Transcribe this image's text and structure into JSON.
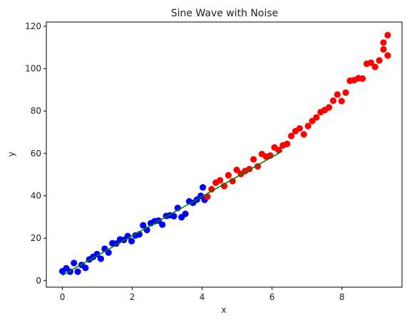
{
  "chart_data": {
    "type": "scatter",
    "title": "Sine Wave with Noise",
    "xlabel": "x",
    "ylabel": "y",
    "xlim": [
      -0.46,
      9.72
    ],
    "ylim": [
      -3.1,
      122.0
    ],
    "xticks": [
      0,
      2,
      4,
      6,
      8
    ],
    "yticks": [
      0,
      20,
      40,
      60,
      80,
      100,
      120
    ],
    "grid": false,
    "legend": "none",
    "series": [
      {
        "kind": "scatter",
        "color": "#0000ff",
        "x": [
          0.0,
          0.11,
          0.22,
          0.33,
          0.44,
          0.55,
          0.66,
          0.77,
          0.88,
          0.99,
          1.1,
          1.21,
          1.32,
          1.43,
          1.54,
          1.65,
          1.76,
          1.87,
          1.98,
          2.09,
          2.2,
          2.31,
          2.42,
          2.53,
          2.64,
          2.75,
          2.86,
          2.97,
          3.08,
          3.19,
          3.3,
          3.41,
          3.52,
          3.63,
          3.74,
          3.85,
          3.96,
          4.07
        ],
        "y": [
          4.4,
          5.8,
          4.2,
          8.3,
          4.2,
          7.4,
          6.0,
          10.0,
          11.2,
          12.5,
          10.3,
          15.0,
          13.2,
          17.6,
          17.5,
          19.4,
          19.2,
          21.0,
          18.6,
          21.3,
          21.8,
          26.1,
          23.9,
          27.1,
          28.0,
          28.3,
          26.4,
          30.5,
          30.8,
          30.4,
          34.3,
          29.9,
          31.5,
          37.4,
          36.7,
          38.2,
          40.0,
          38.1
        ]
      },
      {
        "kind": "scatter",
        "color": "#ff0000",
        "x": [
          4.15,
          4.27,
          4.39,
          4.51,
          4.63,
          4.75,
          4.87,
          4.99,
          5.11,
          5.23,
          5.35,
          5.47,
          5.59,
          5.71,
          5.83,
          5.95,
          6.07,
          6.19,
          6.31,
          6.43,
          6.55,
          6.67,
          6.79,
          6.91,
          7.03,
          7.15,
          7.27,
          7.39,
          7.51,
          7.63,
          7.75,
          7.87,
          7.99,
          8.11,
          8.23,
          8.35,
          8.47,
          8.59,
          8.71,
          8.83,
          8.95,
          9.07,
          9.19,
          9.31
        ],
        "y": [
          39.6,
          43.1,
          46.2,
          47.3,
          44.6,
          49.7,
          46.9,
          52.2,
          50.3,
          51.7,
          52.6,
          57.2,
          53.9,
          59.7,
          58.5,
          59.0,
          62.8,
          61.6,
          63.8,
          64.5,
          68.2,
          70.5,
          71.8,
          69.0,
          72.9,
          75.3,
          77.0,
          79.5,
          80.5,
          81.7,
          84.9,
          87.8,
          84.7,
          88.7,
          94.3,
          94.6,
          95.5,
          95.3,
          102.3,
          102.8,
          100.8,
          103.9,
          109.1,
          106.2
        ]
      }
    ],
    "extra_points": {
      "blue": {
        "x": [
          4.02
        ],
        "y": [
          44.0
        ]
      },
      "red": {
        "x": [
          9.19,
          9.31
        ],
        "y": [
          112.3,
          115.8
        ]
      }
    },
    "fit_line": {
      "kind": "line",
      "color": "#008000",
      "x": [
        0.0,
        6.3
      ],
      "y": [
        2.5,
        61.1
      ]
    }
  }
}
